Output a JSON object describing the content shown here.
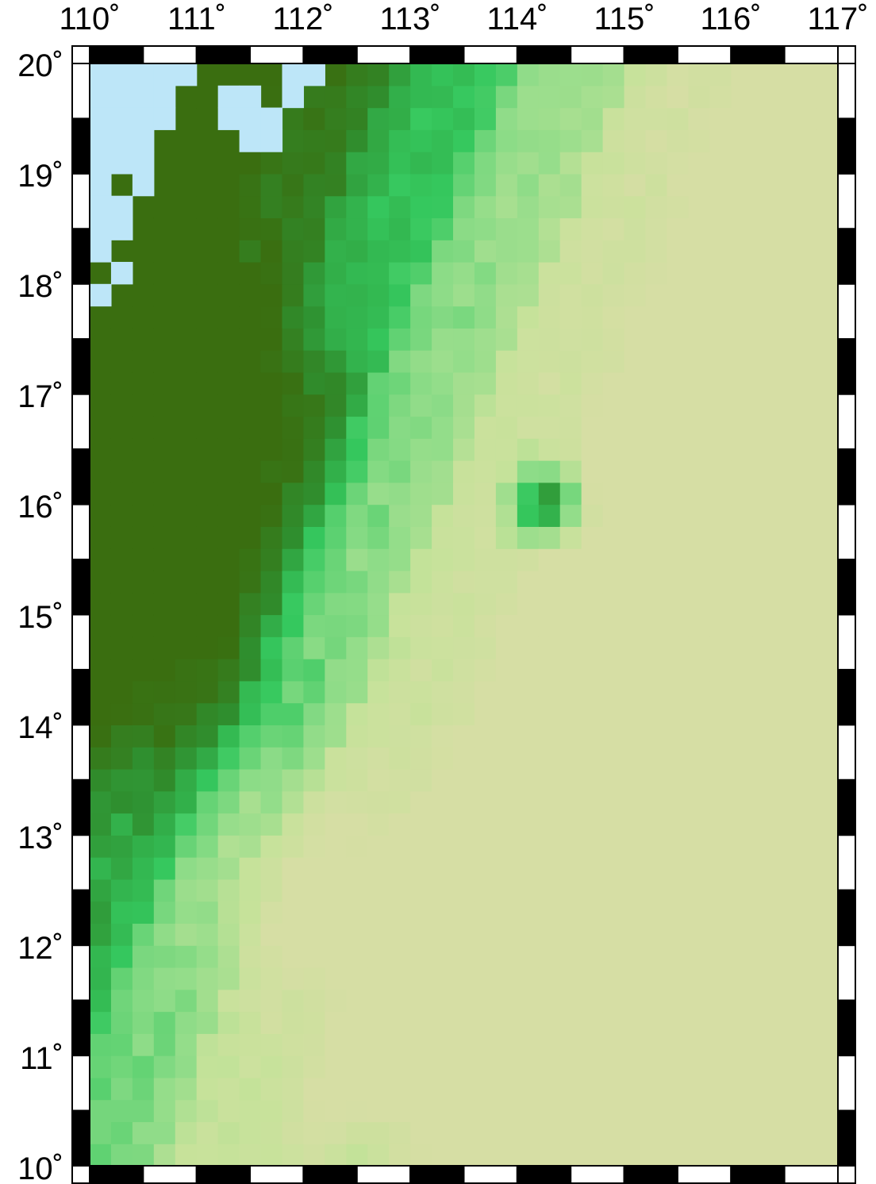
{
  "map": {
    "projection": "cartesian lon/lat",
    "lon_range": [
      110,
      117
    ],
    "lat_range": [
      10,
      20
    ],
    "lon_ticks": [
      "110˚",
      "111˚",
      "112˚",
      "113˚",
      "114˚",
      "115˚",
      "116˚",
      "117˚"
    ],
    "lat_ticks": [
      "20˚",
      "19˚",
      "18˚",
      "17˚",
      "16˚",
      "15˚",
      "14˚",
      "13˚",
      "12˚",
      "11˚",
      "10˚"
    ],
    "frame_style": "checkered black/white border, 0.5 degree segments",
    "grid_cell_deg": 0.2,
    "colors": {
      "land": "#bde6f8",
      "deep": "#3a6e10",
      "mid_dark": "#2f8f2f",
      "mid": "#35c85e",
      "light": "#8edc88",
      "pale": "#c6e29a",
      "plain": "#d6dea4",
      "frame_black": "#000000",
      "frame_white": "#ffffff"
    },
    "legend": "none"
  }
}
